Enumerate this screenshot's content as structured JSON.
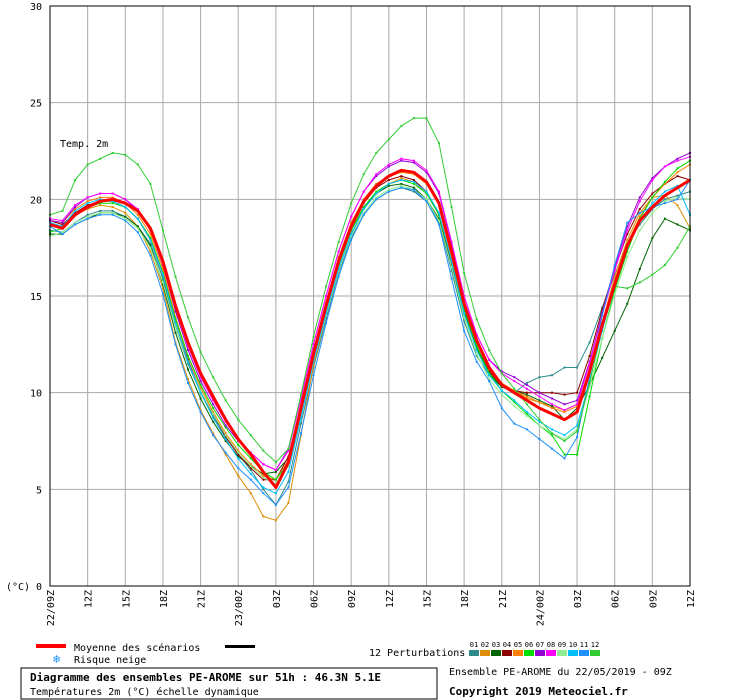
{
  "chart_data": {
    "type": "line",
    "annotation": "Temp. 2m",
    "ylabel": "(°C)",
    "ylim": [
      0,
      30
    ],
    "y_ticks": [
      0,
      5,
      10,
      15,
      20,
      25,
      30
    ],
    "y_tick_labels": [
      "0",
      "5",
      "10",
      "15",
      "20",
      "25",
      "30"
    ],
    "x_tick_labels": [
      "22/09Z",
      "12Z",
      "15Z",
      "18Z",
      "21Z",
      "23/00Z",
      "03Z",
      "06Z",
      "09Z",
      "12Z",
      "15Z",
      "18Z",
      "21Z",
      "24/00Z",
      "03Z",
      "06Z",
      "09Z",
      "12Z"
    ],
    "x_hours": [
      0,
      51
    ],
    "grid": true,
    "mean": {
      "name": "Moyenne des scénarios",
      "color": "#ff0000",
      "values": [
        18.7,
        18.5,
        19.2,
        19.6,
        19.9,
        20.0,
        19.8,
        19.4,
        18.5,
        16.8,
        14.5,
        12.6,
        11.0,
        9.8,
        8.6,
        7.6,
        6.8,
        5.9,
        5.1,
        6.4,
        9.2,
        12.0,
        14.5,
        16.8,
        18.6,
        19.9,
        20.7,
        21.2,
        21.5,
        21.4,
        20.9,
        19.8,
        17.3,
        14.6,
        12.7,
        11.3,
        10.4,
        10.0,
        9.6,
        9.2,
        8.9,
        8.6,
        9.0,
        11.1,
        13.5,
        15.6,
        17.6,
        18.9,
        19.6,
        20.2,
        20.6,
        21.0
      ]
    },
    "members": [
      {
        "color": "#2e8b8b",
        "values": [
          18.4,
          18.3,
          18.8,
          19.2,
          19.4,
          19.4,
          19.1,
          18.6,
          17.7,
          15.9,
          13.4,
          11.5,
          10.0,
          8.8,
          7.7,
          6.8,
          6.0,
          5.0,
          4.2,
          5.4,
          8.4,
          11.3,
          13.8,
          16.2,
          18.0,
          19.2,
          20.0,
          20.4,
          20.6,
          20.4,
          19.9,
          18.8,
          16.3,
          13.7,
          11.9,
          10.9,
          10.3,
          10.0,
          10.5,
          10.8,
          10.9,
          11.3,
          11.3,
          12.6,
          14.4,
          16.1,
          17.7,
          18.7,
          19.5,
          20.0,
          20.2,
          20.4
        ]
      },
      {
        "color": "#dc8f06",
        "values": [
          18.6,
          18.6,
          19.2,
          19.5,
          19.7,
          19.6,
          19.3,
          18.6,
          17.3,
          15.4,
          12.6,
          10.7,
          9.1,
          7.9,
          6.8,
          5.7,
          4.8,
          3.6,
          3.4,
          4.3,
          7.8,
          11.4,
          14.0,
          16.3,
          18.2,
          19.5,
          20.3,
          20.8,
          21.1,
          20.9,
          20.3,
          19.3,
          17.0,
          14.3,
          12.4,
          11.1,
          10.3,
          10.1,
          9.7,
          9.5,
          9.3,
          9.1,
          9.4,
          11.1,
          13.6,
          16.0,
          17.9,
          19.3,
          20.1,
          20.2,
          19.7,
          18.5
        ]
      },
      {
        "color": "#006400",
        "values": [
          18.2,
          18.2,
          18.7,
          19.0,
          19.3,
          19.3,
          19.1,
          18.6,
          17.6,
          15.6,
          13.1,
          11.2,
          9.7,
          8.5,
          7.5,
          6.7,
          6.2,
          5.8,
          5.9,
          6.6,
          9.3,
          12.0,
          14.4,
          16.6,
          18.4,
          19.6,
          20.3,
          20.7,
          20.8,
          20.6,
          20.0,
          19.0,
          16.6,
          14.1,
          12.3,
          11.0,
          10.3,
          10.1,
          9.9,
          9.6,
          9.3,
          8.6,
          9.2,
          10.4,
          11.8,
          13.2,
          14.6,
          16.4,
          18.0,
          19.0,
          18.7,
          18.4
        ]
      },
      {
        "color": "#8b0000",
        "values": [
          18.9,
          18.7,
          19.3,
          19.7,
          19.9,
          19.9,
          19.6,
          19.0,
          17.9,
          16.1,
          13.6,
          11.7,
          10.1,
          8.9,
          7.7,
          6.8,
          6.1,
          5.5,
          5.5,
          6.7,
          9.3,
          12.1,
          14.5,
          16.8,
          18.6,
          19.8,
          20.6,
          21.0,
          21.2,
          21.0,
          20.4,
          19.2,
          16.7,
          14.2,
          12.4,
          11.1,
          10.4,
          10.1,
          10.0,
          10.0,
          10.0,
          9.9,
          10.0,
          11.9,
          14.3,
          16.4,
          18.2,
          19.5,
          20.3,
          20.8,
          21.2,
          21.0
        ]
      },
      {
        "color": "#ff7f00",
        "values": [
          18.9,
          18.8,
          19.5,
          19.9,
          20.1,
          20.1,
          19.8,
          19.2,
          18.2,
          16.4,
          13.9,
          11.9,
          10.3,
          9.0,
          7.9,
          7.0,
          6.3,
          5.7,
          5.5,
          6.5,
          9.3,
          12.2,
          14.7,
          17.0,
          18.8,
          20.0,
          20.8,
          21.2,
          21.4,
          21.3,
          20.8,
          19.7,
          17.2,
          14.5,
          12.6,
          11.2,
          10.5,
          10.1,
          9.8,
          9.5,
          9.2,
          9.0,
          9.3,
          11.1,
          13.6,
          15.8,
          17.7,
          19.1,
          20.1,
          20.8,
          21.4,
          21.8
        ]
      },
      {
        "color": "#00dd00",
        "values": [
          18.3,
          18.5,
          19.2,
          19.6,
          19.8,
          19.8,
          19.6,
          19.0,
          18.0,
          16.2,
          13.8,
          11.9,
          10.4,
          9.2,
          8.2,
          7.3,
          6.6,
          5.9,
          5.5,
          6.4,
          9.1,
          11.9,
          14.3,
          16.6,
          18.4,
          19.6,
          20.4,
          20.8,
          21.0,
          20.8,
          20.3,
          19.2,
          16.8,
          14.3,
          12.4,
          11.0,
          10.1,
          9.5,
          8.9,
          8.3,
          7.8,
          6.8,
          6.8,
          9.8,
          12.8,
          15.3,
          17.3,
          19.0,
          20.1,
          20.9,
          21.6,
          22.0
        ]
      },
      {
        "color": "#9400d3",
        "values": [
          18.9,
          18.8,
          19.6,
          20.1,
          20.3,
          20.3,
          20.0,
          19.4,
          18.4,
          16.6,
          14.2,
          12.2,
          10.6,
          9.4,
          8.3,
          7.5,
          6.9,
          6.3,
          6.0,
          7.1,
          9.7,
          12.5,
          15.0,
          17.3,
          19.1,
          20.4,
          21.2,
          21.7,
          22.0,
          21.9,
          21.4,
          20.3,
          17.7,
          15.0,
          13.0,
          11.7,
          11.1,
          10.8,
          10.4,
          10.0,
          9.7,
          9.4,
          9.6,
          11.6,
          14.1,
          16.5,
          18.6,
          20.1,
          21.1,
          21.7,
          22.1,
          22.4
        ]
      },
      {
        "color": "#ff00ff",
        "values": [
          19.0,
          18.9,
          19.7,
          20.1,
          20.3,
          20.3,
          20.0,
          19.5,
          18.5,
          16.8,
          14.4,
          12.4,
          10.8,
          9.6,
          8.5,
          7.6,
          6.9,
          6.3,
          6.0,
          7.0,
          9.7,
          12.5,
          15.0,
          17.3,
          19.1,
          20.4,
          21.3,
          21.8,
          22.1,
          22.0,
          21.5,
          20.4,
          17.8,
          15.0,
          13.0,
          11.7,
          11.0,
          10.6,
          10.2,
          9.8,
          9.4,
          9.1,
          9.4,
          11.5,
          14.0,
          16.3,
          18.4,
          19.9,
          21.0,
          21.7,
          22.0,
          22.2
        ]
      },
      {
        "color": "#90ee90",
        "values": [
          18.1,
          18.3,
          18.8,
          19.1,
          19.3,
          19.3,
          19.0,
          18.5,
          17.5,
          15.7,
          13.4,
          11.6,
          10.1,
          8.9,
          7.8,
          6.9,
          6.2,
          5.6,
          5.3,
          6.2,
          8.8,
          11.6,
          14.0,
          16.3,
          18.1,
          19.3,
          20.1,
          20.5,
          20.7,
          20.5,
          20.0,
          18.9,
          16.5,
          13.9,
          12.0,
          10.7,
          9.9,
          9.3,
          8.8,
          8.3,
          7.9,
          7.6,
          8.1,
          10.3,
          12.8,
          15.1,
          17.0,
          18.4,
          19.3,
          19.9,
          20.1,
          20.0
        ]
      },
      {
        "color": "#00bfff",
        "values": [
          18.8,
          18.6,
          19.4,
          19.8,
          20.0,
          19.9,
          19.6,
          19.0,
          17.9,
          16.1,
          13.6,
          11.6,
          10.0,
          8.7,
          7.6,
          6.6,
          5.8,
          5.1,
          4.8,
          5.9,
          8.7,
          11.6,
          14.1,
          16.4,
          18.2,
          19.5,
          20.3,
          20.8,
          21.0,
          20.9,
          20.4,
          19.3,
          16.8,
          14.1,
          12.2,
          10.9,
          10.1,
          9.6,
          9.0,
          8.5,
          8.1,
          7.8,
          8.3,
          10.6,
          13.2,
          15.5,
          17.5,
          18.9,
          19.8,
          20.4,
          20.7,
          19.2
        ]
      },
      {
        "color": "#1e90ff",
        "values": [
          18.6,
          18.2,
          18.7,
          19.0,
          19.2,
          19.2,
          18.9,
          18.3,
          17.1,
          15.1,
          12.5,
          10.5,
          9.0,
          7.8,
          6.9,
          6.1,
          5.5,
          4.8,
          4.2,
          5.1,
          7.9,
          10.9,
          13.6,
          16.0,
          17.9,
          19.2,
          20.0,
          20.4,
          20.6,
          20.5,
          19.9,
          18.7,
          15.9,
          13.2,
          11.6,
          10.6,
          9.2,
          8.4,
          8.1,
          7.6,
          7.1,
          6.6,
          7.7,
          10.8,
          14.0,
          16.6,
          18.8,
          19.3,
          19.6,
          19.8,
          20.0,
          21.0
        ]
      },
      {
        "color": "#32cd32",
        "values": [
          19.2,
          19.4,
          21.0,
          21.8,
          22.1,
          22.4,
          22.3,
          21.8,
          20.8,
          18.4,
          16.0,
          13.9,
          12.1,
          10.8,
          9.6,
          8.6,
          7.8,
          7.0,
          6.4,
          7.1,
          9.9,
          12.9,
          15.5,
          17.8,
          19.8,
          21.3,
          22.4,
          23.1,
          23.8,
          24.2,
          24.2,
          22.9,
          19.6,
          16.2,
          13.8,
          12.2,
          11.0,
          10.2,
          9.4,
          8.6,
          7.9,
          7.5,
          8.0,
          10.5,
          13.4,
          15.5,
          15.4,
          15.7,
          16.1,
          16.6,
          17.5,
          18.6
        ]
      }
    ],
    "legend": {
      "mean_label": "Moyenne des scénarios",
      "snow_label": "Risque neige",
      "perturbations_label": "12 Perturbations",
      "perturbation_numbers": [
        "01",
        "02",
        "03",
        "04",
        "05",
        "06",
        "07",
        "08",
        "09",
        "10",
        "11",
        "12"
      ]
    }
  },
  "footer": {
    "title": "Diagramme des ensembles PE-AROME sur 51h : 46.3N 5.1E",
    "subtitle": "Températures 2m (°C) échelle dynamique",
    "run": "Ensemble PE-AROME du 22/05/2019 - 09Z",
    "copyright": "Copyright 2019 Meteociel.fr"
  }
}
